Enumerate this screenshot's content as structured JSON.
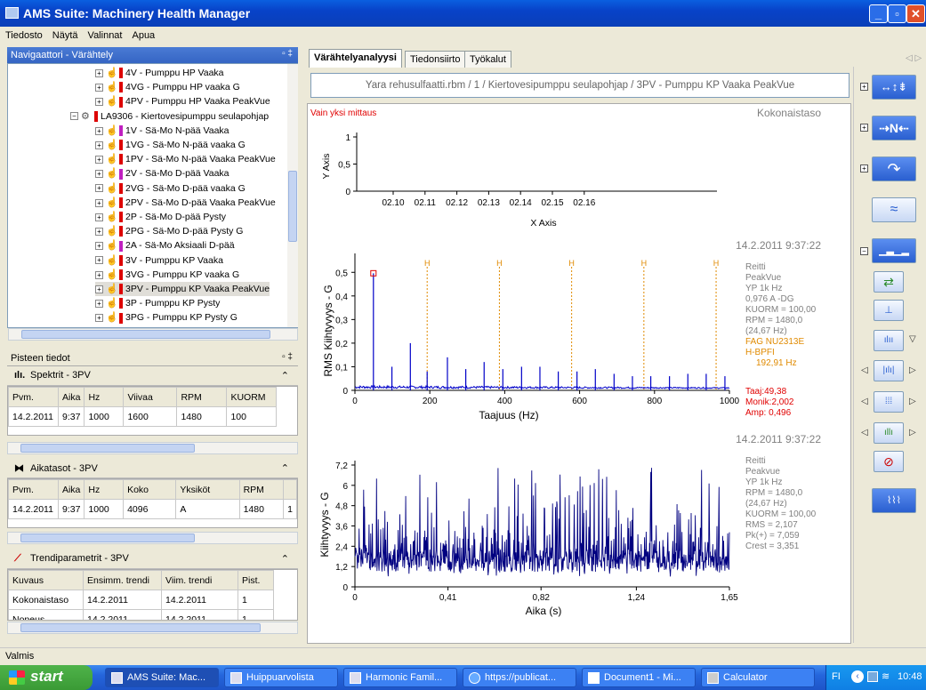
{
  "window": {
    "title": "AMS Suite: Machinery Health Manager"
  },
  "menu": [
    "Tiedosto",
    "Näytä",
    "Valinnat",
    "Apua"
  ],
  "navigator": {
    "title": "Navigaattori - Värähtely",
    "items": [
      {
        "label": "4V - Pumppu HP Vaaka",
        "level": 2
      },
      {
        "label": "4VG - Pumppu HP vaaka G",
        "level": 2
      },
      {
        "label": "4PV - Pumppu HP Vaaka PeakVue",
        "level": 2
      },
      {
        "label": "LA9306 - Kiertovesipumppu seulapohjap",
        "level": 1
      },
      {
        "label": "1V - Sä-Mo N-pää Vaaka",
        "level": 2
      },
      {
        "label": "1VG - Sä-Mo N-pää vaaka G",
        "level": 2
      },
      {
        "label": "1PV - Sä-Mo N-pää Vaaka PeakVue",
        "level": 2
      },
      {
        "label": "2V - Sä-Mo D-pää Vaaka",
        "level": 2
      },
      {
        "label": "2VG - Sä-Mo D-pää vaaka G",
        "level": 2
      },
      {
        "label": "2PV - Sä-Mo D-pää Vaaka PeakVue",
        "level": 2
      },
      {
        "label": "2P - Sä-Mo D-pää Pysty",
        "level": 2
      },
      {
        "label": "2PG - Sä-Mo D-pää Pysty G",
        "level": 2
      },
      {
        "label": "2A - Sä-Mo Aksiaali D-pää",
        "level": 2
      },
      {
        "label": "3V - Pumppu KP Vaaka",
        "level": 2
      },
      {
        "label": "3VG - Pumppu KP vaaka G",
        "level": 2
      },
      {
        "label": "3PV - Pumppu KP Vaaka PeakVue",
        "level": 2,
        "selected": true
      },
      {
        "label": "3P - Pumppu KP Pysty",
        "level": 2
      },
      {
        "label": "3PG - Pumppu KP Pysty G",
        "level": 2
      }
    ]
  },
  "point_info": {
    "title": "Pisteen tiedot",
    "spectra": {
      "title": "Spektrit - 3PV",
      "headers": [
        "Pvm.",
        "Aika",
        "Hz",
        "Viivaa",
        "RPM",
        "KUORM"
      ],
      "row": [
        "14.2.2011",
        "9:37",
        "1000",
        "1600",
        "1480",
        "100"
      ]
    },
    "waveforms": {
      "title": "Aikatasot - 3PV",
      "headers": [
        "Pvm.",
        "Aika",
        "Hz",
        "Koko",
        "Yksiköt",
        "RPM"
      ],
      "row": [
        "14.2.2011",
        "9:37",
        "1000",
        "4096",
        "A",
        "1480"
      ],
      "overflow_cell": "1"
    },
    "trends": {
      "title": "Trendiparametrit - 3PV",
      "headers": [
        "Kuvaus",
        "Ensimm. trendi",
        "Viim. trendi",
        "Pist."
      ],
      "rows": [
        [
          "Kokonaistaso",
          "14.2.2011",
          "14.2.2011",
          "1"
        ],
        [
          "Nopeus",
          "14.2.2011",
          "14.2.2011",
          "1"
        ]
      ]
    }
  },
  "tabs": [
    "Värähtelyanalyysi",
    "Tiedonsiirto",
    "Työkalut"
  ],
  "breadcrumb": "Yara rehusulfaatti.rbm / 1 / Kiertovesipumppu seulapohjap / 3PV - Pumppu KP Vaaka PeakVue",
  "plot_header": {
    "left": "Vain yksi mittaus",
    "right": "Kokonaistaso"
  },
  "colors": {
    "trace": "#0000c8",
    "harmonic": "#e08a00",
    "annotation": "#e08a00",
    "cursor_info": "#e00000",
    "info": "#808080"
  },
  "chart_data": [
    {
      "type": "scatter",
      "xlabel": "X Axis",
      "ylabel": "Y Axis",
      "xticks": [
        "02.10",
        "02.11",
        "02.12",
        "02.13",
        "02.14",
        "02.15",
        "02.16"
      ],
      "yticks": [
        "0",
        "0,5",
        "1"
      ],
      "ylim": [
        0,
        1
      ],
      "values": []
    },
    {
      "type": "line",
      "timestamp": "14.2.2011 9:37:22",
      "xlabel": "Taajuus (Hz)",
      "ylabel": "RMS Kiihtyvyys - G",
      "xlim": [
        0,
        1000
      ],
      "ylim": [
        0,
        0.55
      ],
      "xticks": [
        "0",
        "200",
        "400",
        "600",
        "800",
        "1000"
      ],
      "yticks": [
        "0",
        "0,1",
        "0,2",
        "0,3",
        "0,4",
        "0,5"
      ],
      "harmonics_hz": [
        49.4,
        192.9,
        385.8,
        578.7,
        771.6,
        964.5
      ],
      "harmonic_label": "H",
      "peaks": [
        {
          "x": 49.4,
          "y": 0.496
        },
        {
          "x": 98.8,
          "y": 0.1
        },
        {
          "x": 148,
          "y": 0.2
        },
        {
          "x": 192.9,
          "y": 0.08
        },
        {
          "x": 247,
          "y": 0.14
        },
        {
          "x": 296,
          "y": 0.09
        },
        {
          "x": 345,
          "y": 0.12
        },
        {
          "x": 395,
          "y": 0.09
        },
        {
          "x": 445,
          "y": 0.1
        },
        {
          "x": 494,
          "y": 0.1
        },
        {
          "x": 543,
          "y": 0.08
        },
        {
          "x": 593,
          "y": 0.08
        },
        {
          "x": 642,
          "y": 0.09
        },
        {
          "x": 692,
          "y": 0.07
        },
        {
          "x": 741,
          "y": 0.06
        },
        {
          "x": 790,
          "y": 0.06
        },
        {
          "x": 840,
          "y": 0.06
        },
        {
          "x": 889,
          "y": 0.07
        },
        {
          "x": 938,
          "y": 0.07
        },
        {
          "x": 988,
          "y": 0.06
        }
      ],
      "info": [
        "Reitti",
        "PeakVue",
        "YP 1k Hz",
        "0,976 A -DG",
        "KUORM = 100,00",
        "RPM = 1480,0",
        "(24,67 Hz)"
      ],
      "fault": [
        "FAG NU2313E",
        "H-BPFI",
        "192,91 Hz"
      ],
      "cursor": [
        "Taaj:49,38",
        "Monik:2,002",
        "Amp: 0,496"
      ]
    },
    {
      "type": "line",
      "timestamp": "14.2.2011 9:37:22",
      "xlabel": "Aika (s)",
      "ylabel": "Kiihtyvyys - G",
      "xlim": [
        0,
        1.65
      ],
      "ylim": [
        0,
        7.2
      ],
      "xticks": [
        "0",
        "0,41",
        "0,82",
        "1,24",
        "1,65"
      ],
      "yticks": [
        "0",
        "1,2",
        "2,4",
        "3,6",
        "4,8",
        "6",
        "7,2"
      ],
      "stats": {
        "rms": 2.107,
        "pk": 7.059,
        "crest": 3.351
      },
      "info": [
        "Reitti",
        "Peakvue",
        "YP 1k Hz",
        "RPM = 1480,0",
        "(24,67 Hz)",
        "KUORM = 100,00",
        "RMS = 2,107",
        "Pk(+) = 7,059",
        "Crest = 3,351"
      ]
    }
  ],
  "statusbar": "Valmis",
  "taskbar": {
    "start": "start",
    "tasks": [
      "AMS Suite: Mac...",
      "Huippuarvolista",
      "Harmonic Famil...",
      "https://publicat...",
      "Document1 - Mi...",
      "Calculator"
    ],
    "lang": "FI",
    "clock": "10:48"
  }
}
